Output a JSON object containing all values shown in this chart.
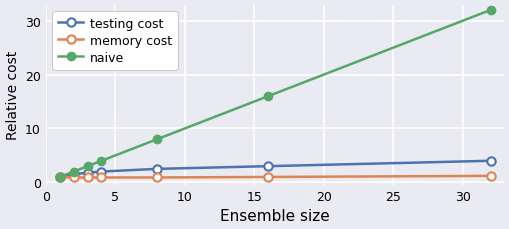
{
  "x": [
    1,
    2,
    3,
    4,
    8,
    16,
    32
  ],
  "naive": [
    1,
    2,
    3,
    4,
    8,
    16,
    32
  ],
  "testing_cost": [
    1.0,
    1.5,
    1.8,
    2.0,
    2.5,
    3.0,
    4.0
  ],
  "memory_cost": [
    1.0,
    0.9,
    0.9,
    0.9,
    0.9,
    1.0,
    1.2
  ],
  "colors": {
    "testing_cost": "#4c72b0",
    "memory_cost": "#dd8452",
    "naive": "#55a868"
  },
  "legend_labels": [
    "testing cost",
    "memory cost",
    "naive"
  ],
  "xlabel": "Ensemble size",
  "ylabel": "Relative cost",
  "xlim": [
    0,
    33
  ],
  "ylim": [
    -0.5,
    33
  ],
  "xticks": [
    0,
    5,
    10,
    15,
    20,
    25,
    30
  ],
  "yticks": [
    0,
    10,
    20,
    30
  ],
  "background_color": "#eaeaf2",
  "grid_color": "#ffffff",
  "line_width": 1.8,
  "marker_size": 6,
  "xlabel_fontsize": 11,
  "ylabel_fontsize": 10,
  "tick_fontsize": 9,
  "legend_fontsize": 9
}
